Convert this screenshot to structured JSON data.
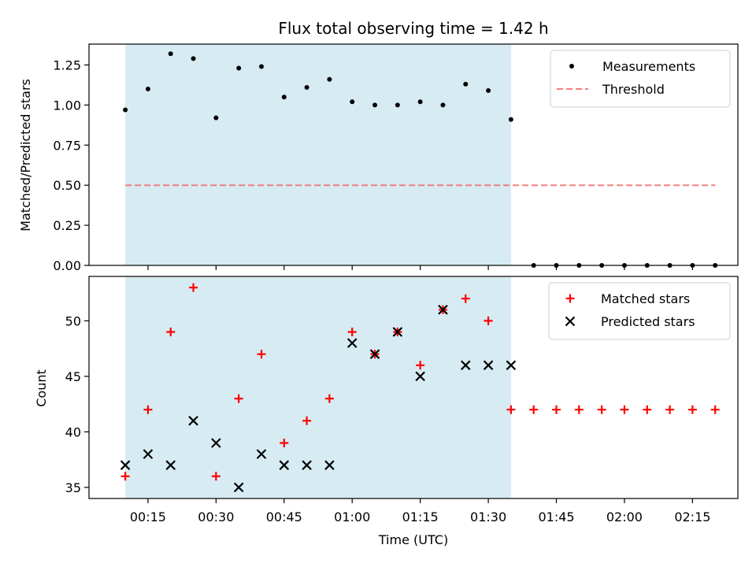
{
  "chart_data": [
    {
      "type": "scatter",
      "title": "Flux total observing time = 1.42 h",
      "xlabel": "",
      "ylabel": "Matched/Predicted stars",
      "ylim": [
        0,
        1.38
      ],
      "yticks": [
        0,
        0.25,
        0.5,
        0.75,
        1.0,
        1.25
      ],
      "yticklabels": [
        "0.00",
        "0.25",
        "0.50",
        "0.75",
        "1.00",
        "1.25"
      ],
      "xlim": [
        "00:02",
        "02:25"
      ],
      "x": [
        "00:10",
        "00:15",
        "00:20",
        "00:25",
        "00:30",
        "00:35",
        "00:40",
        "00:45",
        "00:50",
        "00:55",
        "01:00",
        "01:05",
        "01:10",
        "01:15",
        "01:20",
        "01:25",
        "01:30",
        "01:35",
        "01:40",
        "01:45",
        "01:50",
        "01:55",
        "02:00",
        "02:05",
        "02:10",
        "02:15",
        "02:20"
      ],
      "series": [
        {
          "name": "Measurements",
          "marker": "dot",
          "color": "#000000",
          "values": [
            0.97,
            1.1,
            1.32,
            1.29,
            0.92,
            1.23,
            1.24,
            1.05,
            1.11,
            1.16,
            1.02,
            1.0,
            1.0,
            1.02,
            1.0,
            1.13,
            1.09,
            0.91,
            0,
            0,
            0,
            0,
            0,
            0,
            0,
            0,
            0
          ]
        },
        {
          "name": "Threshold",
          "style": "dashed",
          "color": "#f08080",
          "x": [
            "00:10",
            "02:20"
          ],
          "values": [
            0.5,
            0.5
          ]
        }
      ],
      "shaded_span": {
        "from": "00:10",
        "to": "01:35",
        "color": "#add8e6"
      },
      "legend_position": "top-right",
      "grid": false
    },
    {
      "type": "scatter",
      "xlabel": "Time (UTC)",
      "ylabel": "Count",
      "ylim": [
        34,
        54
      ],
      "yticks": [
        35,
        40,
        45,
        50
      ],
      "yticklabels": [
        "35",
        "40",
        "45",
        "50"
      ],
      "xlim": [
        "00:02",
        "02:25"
      ],
      "xticklabels": [
        "00:15",
        "00:30",
        "00:45",
        "01:00",
        "01:15",
        "01:30",
        "01:45",
        "02:00",
        "02:15"
      ],
      "x": [
        "00:10",
        "00:15",
        "00:20",
        "00:25",
        "00:30",
        "00:35",
        "00:40",
        "00:45",
        "00:50",
        "00:55",
        "01:00",
        "01:05",
        "01:10",
        "01:15",
        "01:20",
        "01:25",
        "01:30",
        "01:35",
        "01:40",
        "01:45",
        "01:50",
        "01:55",
        "02:00",
        "02:05",
        "02:10",
        "02:15",
        "02:20"
      ],
      "series": [
        {
          "name": "Matched stars",
          "marker": "plus",
          "color": "#ff0000",
          "values": [
            36,
            42,
            49,
            53,
            36,
            43,
            47,
            39,
            41,
            43,
            49,
            47,
            49,
            46,
            51,
            52,
            50,
            42,
            42,
            42,
            42,
            42,
            42,
            42,
            42,
            42,
            42
          ]
        },
        {
          "name": "Predicted stars",
          "marker": "x",
          "color": "#000000",
          "values": [
            37,
            38,
            37,
            41,
            39,
            35,
            38,
            37,
            37,
            37,
            48,
            47,
            49,
            45,
            51,
            46,
            46,
            46,
            null,
            null,
            null,
            null,
            null,
            null,
            null,
            null,
            null
          ]
        }
      ],
      "shaded_span": {
        "from": "00:10",
        "to": "01:35",
        "color": "#add8e6"
      },
      "legend_position": "top-right",
      "grid": false
    }
  ]
}
